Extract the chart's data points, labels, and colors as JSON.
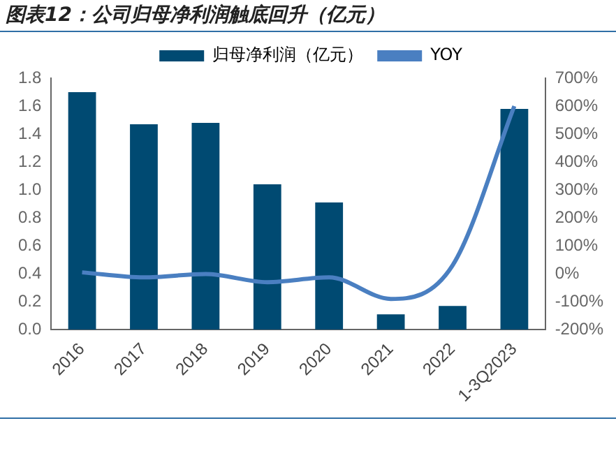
{
  "chart_data": {
    "type": "bar",
    "title": "图表12：公司归母净利润触底回升（亿元）",
    "categories": [
      "2016",
      "2017",
      "2018",
      "2019",
      "2020",
      "2021",
      "2022",
      "1-3Q2023"
    ],
    "series": [
      {
        "name": "归母净利润（亿元）",
        "color": "#004a72",
        "values": [
          1.7,
          1.47,
          1.48,
          1.04,
          0.91,
          0.11,
          0.17,
          1.58
        ]
      },
      {
        "name": "YOY",
        "type": "line",
        "axis": "y2",
        "color": "#4a7fc1",
        "values": [
          5,
          -13,
          -1,
          -30,
          -13,
          -90,
          30,
          600
        ]
      }
    ],
    "ylim": [
      0,
      1.8
    ],
    "yticks": [
      {
        "value": 0,
        "label": "0.0"
      },
      {
        "value": 0.2,
        "label": "0.2"
      },
      {
        "value": 0.4,
        "label": "0.4"
      },
      {
        "value": 0.6,
        "label": "0.6"
      },
      {
        "value": 0.8,
        "label": "0.8"
      },
      {
        "value": 1,
        "label": "1.0"
      },
      {
        "value": 1.2,
        "label": "1.2"
      },
      {
        "value": 1.4,
        "label": "1.4"
      },
      {
        "value": 1.6,
        "label": "1.6"
      },
      {
        "value": 1.8,
        "label": "1.8"
      }
    ],
    "y2lim": [
      -200,
      700
    ],
    "y2ticks": [
      {
        "value": -200,
        "label": "-200%"
      },
      {
        "value": -100,
        "label": "-100%"
      },
      {
        "value": 0,
        "label": "0%"
      },
      {
        "value": 100,
        "label": "100%"
      },
      {
        "value": 200,
        "label": "200%"
      },
      {
        "value": 300,
        "label": "300%"
      },
      {
        "value": 400,
        "label": "400%"
      },
      {
        "value": 500,
        "label": "500%"
      },
      {
        "value": 600,
        "label": "600%"
      },
      {
        "value": 700,
        "label": "700%"
      }
    ],
    "grid": false,
    "legend": "top",
    "marker": "none",
    "line_style": "solid"
  }
}
